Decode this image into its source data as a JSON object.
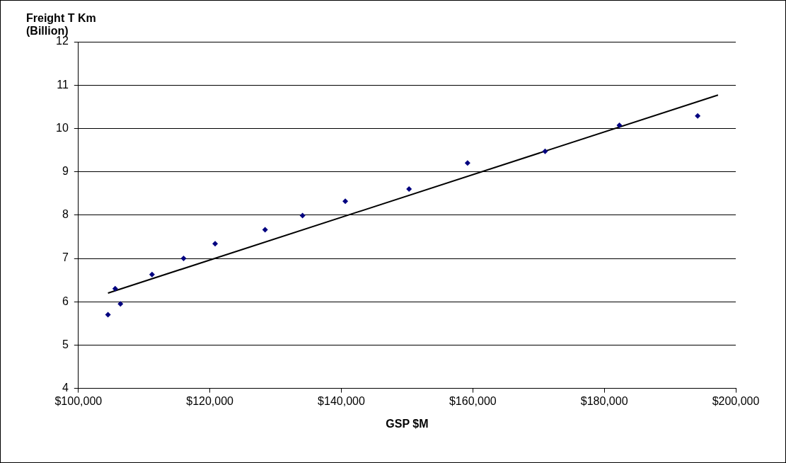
{
  "chart_data": {
    "type": "scatter",
    "xlabel": "GSP $M",
    "ylabel": "Freight T Km\n(Billion)",
    "xlim": [
      100000,
      200000
    ],
    "xticks": [
      {
        "value": 100000,
        "label": "$100,000"
      },
      {
        "value": 120000,
        "label": "$120,000"
      },
      {
        "value": 140000,
        "label": "$140,000"
      },
      {
        "value": 160000,
        "label": "$160,000"
      },
      {
        "value": 180000,
        "label": "$180,000"
      },
      {
        "value": 200000,
        "label": "$200,000"
      }
    ],
    "ylim": [
      4,
      12
    ],
    "yticks": [
      4,
      5,
      6,
      7,
      8,
      9,
      10,
      11,
      12
    ],
    "grid": "y",
    "legend": false,
    "series": [
      {
        "type": "scatter",
        "color": "#000080",
        "marker": "diamond",
        "x": [
          104500,
          105600,
          106400,
          111200,
          116000,
          120800,
          128400,
          134100,
          140600,
          150300,
          159200,
          171000,
          182300,
          194200
        ],
        "values": [
          5.7,
          6.3,
          5.95,
          6.63,
          7.0,
          7.34,
          7.66,
          7.99,
          8.32,
          8.6,
          9.2,
          9.47,
          10.07,
          10.29
        ]
      },
      {
        "type": "line",
        "color": "#000000",
        "marker": "none",
        "x": [
          104500,
          197300
        ],
        "values": [
          6.2,
          10.77
        ]
      }
    ]
  }
}
